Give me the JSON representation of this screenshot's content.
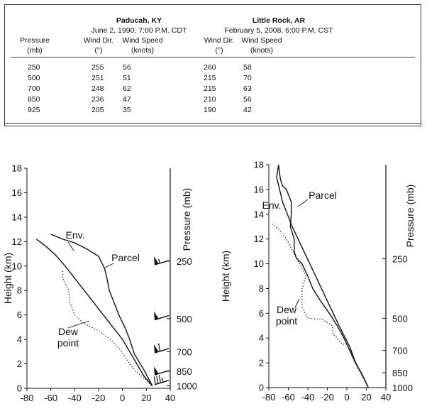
{
  "table": {
    "stations": [
      {
        "name": "Paducah, KY",
        "date": "June 2, 1990, 7:00 P.M. CDT"
      },
      {
        "name": "Little Rock, AR",
        "date": "February 5, 2008, 6:00 P.M. CST"
      }
    ],
    "headers": {
      "pressure": "Pressure",
      "pressure_unit": "(mb)",
      "wind_dir": "Wind Dir.",
      "wind_dir_unit": "(°)",
      "wind_speed": "Wind Speed",
      "wind_speed_unit": "(knots)"
    },
    "rows": [
      {
        "p": "250",
        "d1": "255",
        "s1": "56",
        "d2": "260",
        "s2": "58"
      },
      {
        "p": "500",
        "d1": "251",
        "s1": "51",
        "d2": "215",
        "s2": "70"
      },
      {
        "p": "700",
        "d1": "248",
        "s1": "62",
        "d2": "215",
        "s2": "63"
      },
      {
        "p": "850",
        "d1": "236",
        "s1": "47",
        "d2": "210",
        "s2": "56"
      },
      {
        "p": "925",
        "d1": "205",
        "s1": "35",
        "d2": "190",
        "s2": "42"
      }
    ]
  },
  "chart_data": [
    {
      "type": "line",
      "ylabel": "Height (km)",
      "y2label": "Pressure (mb)",
      "xlim": [
        -80,
        40
      ],
      "ylim": [
        0,
        18
      ],
      "xticks": [
        "-80",
        "-60",
        "-40",
        "-20",
        "0",
        "20",
        "40"
      ],
      "yticks": [
        "0",
        "2",
        "4",
        "6",
        "8",
        "10",
        "12",
        "14",
        "16",
        "18"
      ],
      "pressure_levels": [
        {
          "label": "250",
          "height": 10.4
        },
        {
          "label": "500",
          "height": 5.7
        },
        {
          "label": "700",
          "height": 3.0
        },
        {
          "label": "850",
          "height": 1.4
        },
        {
          "label": "1000",
          "height": 0.2
        }
      ],
      "annotations": [
        "Env.",
        "Parcel",
        "Dew point"
      ],
      "series": [
        {
          "name": "Env.",
          "style": "solid",
          "x": [
            25,
            18,
            12,
            6,
            0,
            -8,
            -16,
            -24,
            -32,
            -40,
            -48,
            -56,
            -64,
            -72
          ],
          "y": [
            0.2,
            1.0,
            2.0,
            3.0,
            4.0,
            5.0,
            6.0,
            7.0,
            8.0,
            9.0,
            10.0,
            10.9,
            11.6,
            12.2
          ]
        },
        {
          "name": "Parcel",
          "style": "solid",
          "x": [
            25,
            18,
            10,
            6,
            2,
            -3,
            -7,
            -11,
            -13,
            -15,
            -20,
            -30,
            -40,
            -50,
            -60
          ],
          "y": [
            0.2,
            1.5,
            2.8,
            4.0,
            5.0,
            6.0,
            7.0,
            8.0,
            9.0,
            9.8,
            10.8,
            11.4,
            11.9,
            12.2,
            12.6
          ]
        },
        {
          "name": "Dew point",
          "style": "dotted",
          "x": [
            24,
            20,
            12,
            6,
            2,
            -2,
            -10,
            -20,
            -32,
            -40,
            -44,
            -45,
            -48,
            -50,
            -50
          ],
          "y": [
            0.2,
            0.7,
            1.3,
            2.0,
            2.6,
            3.2,
            4.0,
            4.7,
            5.3,
            6.0,
            7.0,
            8.0,
            8.6,
            9.0,
            9.6
          ]
        }
      ],
      "wind_barbs": [
        {
          "label": "250",
          "height": 10.1,
          "speed": 56,
          "direction": 255
        },
        {
          "label": "500",
          "height": 5.6,
          "speed": 51,
          "direction": 251
        },
        {
          "label": "700",
          "height": 2.9,
          "speed": 62,
          "direction": 248
        },
        {
          "label": "850",
          "height": 1.1,
          "speed": 47,
          "direction": 236
        },
        {
          "label": "925",
          "height": 0.3,
          "speed": 35,
          "direction": 205
        }
      ]
    },
    {
      "type": "line",
      "ylabel": "Height (km)",
      "y2label": "Pressure (mb)",
      "xlim": [
        -80,
        40
      ],
      "ylim": [
        0,
        18
      ],
      "xticks": [
        "-80",
        "-60",
        "-40",
        "-20",
        "0",
        "20",
        "40"
      ],
      "yticks": [
        "0",
        "2",
        "4",
        "6",
        "8",
        "10",
        "12",
        "14",
        "16",
        "18"
      ],
      "pressure_levels": [
        {
          "label": "250",
          "height": 10.4
        },
        {
          "label": "500",
          "height": 5.6
        },
        {
          "label": "700",
          "height": 3.0
        },
        {
          "label": "850",
          "height": 1.2
        },
        {
          "label": "1000",
          "height": 0.0
        }
      ],
      "annotations": [
        "Env.",
        "Parcel",
        "Dew point"
      ],
      "series": [
        {
          "name": "Env.",
          "style": "solid",
          "x": [
            22,
            16,
            9,
            3,
            -3,
            -10,
            -18,
            -27,
            -35,
            -40,
            -46,
            -52,
            -54,
            -54,
            -58,
            -57,
            -57,
            -62,
            -66,
            -68,
            -69,
            -70
          ],
          "y": [
            0.0,
            1.0,
            2.0,
            3.0,
            4.0,
            5.0,
            6.0,
            7.0,
            8.0,
            9.0,
            10.0,
            10.5,
            11.0,
            12.0,
            13.0,
            14.0,
            15.0,
            16.0,
            16.3,
            16.8,
            17.3,
            18.0
          ]
        },
        {
          "name": "Parcel",
          "style": "solid",
          "x": [
            22,
            16,
            9,
            3,
            -8,
            -20,
            -32,
            -44,
            -56,
            -66,
            -72,
            -70
          ],
          "y": [
            0.0,
            1.0,
            2.0,
            3.3,
            5.0,
            7.0,
            9.0,
            11.0,
            13.0,
            15.0,
            17.0,
            18.0
          ]
        },
        {
          "name": "Dew point",
          "style": "dotted",
          "x": [
            22,
            15,
            8,
            3,
            0,
            -5,
            -10,
            -14,
            -15,
            -25,
            -40,
            -46,
            -46,
            -42,
            -45,
            -52,
            -62,
            -70,
            -78
          ],
          "y": [
            0.0,
            1.0,
            2.0,
            3.0,
            3.5,
            3.5,
            4.0,
            4.3,
            5.0,
            5.5,
            5.6,
            6.5,
            8.0,
            9.0,
            9.5,
            10.5,
            12.0,
            12.8,
            13.3
          ]
        }
      ]
    }
  ]
}
